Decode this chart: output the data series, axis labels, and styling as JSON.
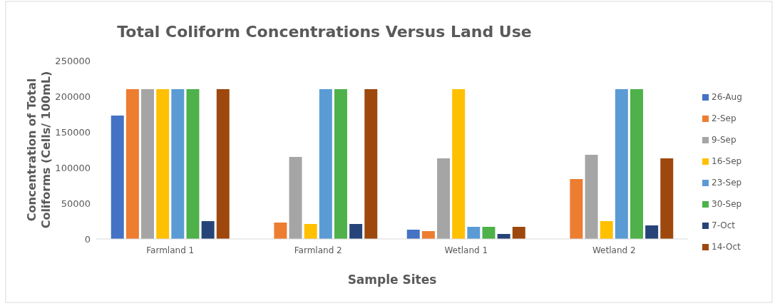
{
  "chart_data": {
    "type": "bar",
    "title": "Total Coliform Concentrations Versus Land Use",
    "xlabel": "Sample Sites",
    "ylabel": "Concentration of Total Coliforms (Cells/ 100mL)",
    "categories": [
      "Farmland 1",
      "Farmland 2",
      "Wetland 1",
      "Wetland 2"
    ],
    "series": [
      {
        "name": "26-Aug",
        "color": "#4472c4",
        "values": [
          173000,
          null,
          13000,
          null
        ]
      },
      {
        "name": "2-Sep",
        "color": "#ed7d31",
        "values": [
          210000,
          23000,
          11000,
          84000
        ]
      },
      {
        "name": "9-Sep",
        "color": "#a5a5a5",
        "values": [
          210000,
          115000,
          113000,
          118000
        ]
      },
      {
        "name": "16-Sep",
        "color": "#ffc000",
        "values": [
          210000,
          21000,
          210000,
          25000
        ]
      },
      {
        "name": "23-Sep",
        "color": "#5b9bd5",
        "values": [
          210000,
          210000,
          17000,
          210000
        ]
      },
      {
        "name": "30-Sep",
        "color": "#4eb14a",
        "values": [
          210000,
          210000,
          17000,
          210000
        ]
      },
      {
        "name": "7-Oct",
        "color": "#264478",
        "values": [
          25000,
          21000,
          7000,
          19000
        ]
      },
      {
        "name": "14-Oct",
        "color": "#9e480e",
        "values": [
          210000,
          210000,
          17000,
          113000
        ]
      }
    ],
    "ylim": [
      0,
      250000
    ],
    "yticks": [
      0,
      50000,
      100000,
      150000,
      200000,
      250000
    ],
    "grid": false,
    "legend": "right"
  }
}
